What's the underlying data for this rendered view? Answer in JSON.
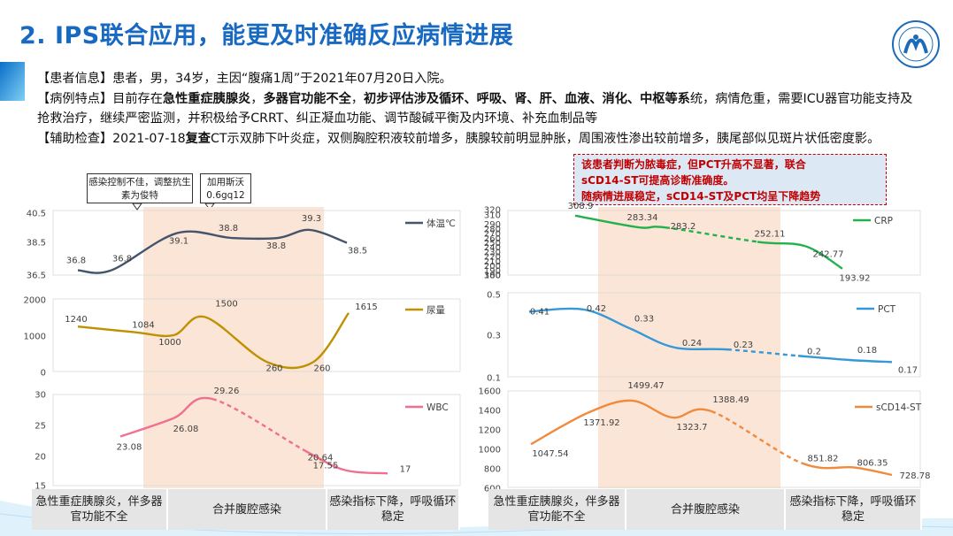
{
  "slide": {
    "title": "2. IPS联合应用，能更及时准确反应病情进展",
    "patient_info_label": "【患者信息】",
    "patient_info_text": "患者，男，34岁，主因“腹痛1周”于2021年07月20日入院。",
    "case_label": "【病例特点】",
    "case_pre": "目前存在",
    "case_b1": "急性重症胰腺炎",
    "case_sep1": "，",
    "case_b2": "多器官功能不全",
    "case_sep2": "，",
    "case_b3": "初步评估涉及循环、呼吸、肾、肝、血液、消化、中枢等系",
    "case_post": "统，病情危重，需要ICU器官功能支持及抢救治疗，继续严密监测，并积极给予CRRT、纠正凝血功能、调节酸碱平衡及内环境、补充血制品等",
    "exam_label": "【辅助检查】",
    "exam_date": "2021-07-18",
    "exam_bold": "复查",
    "exam_text": "CT示双肺下叶炎症，双侧胸腔积液较前增多，胰腺较前明显肿胀，周围液性渗出较前增多，胰尾部似见斑片状低密度影。",
    "callout1": "感染控制不佳，调整抗生素为俊特",
    "callout2": "加用斯沃0.6gq12",
    "red_box": [
      "该患者判断为脓毒症，但PCT升高不显著，联合",
      "sCD14-ST可提高诊断准确度。",
      "随病情进展稳定，sCD14-ST及PCT均呈下降趋势"
    ],
    "phases": [
      "急性重症胰腺炎，伴多器官功能不全",
      "合并腹腔感染",
      "感染指标下降，呼吸循环稳定"
    ],
    "colors": {
      "title": "#1769c2",
      "temp": "#44546a",
      "urine": "#bf9000",
      "wbc": "#f07090",
      "crp": "#22b14c",
      "pct": "#3598d8",
      "scd": "#f08a3c",
      "highlight": "#fbe5d6",
      "red": "#c00000"
    }
  },
  "chart_data": [
    {
      "type": "line",
      "series": [
        {
          "name": "体温℃",
          "values": [
            36.8,
            36.8,
            39.1,
            38.8,
            38.8,
            39.3,
            38.5
          ]
        }
      ],
      "ylim": [
        36.5,
        40.5
      ],
      "yticks": [
        "40.5",
        "38.5",
        "36.5"
      ],
      "labels": [
        "36.8",
        "36.8",
        "39.1",
        "38.8",
        "38.8",
        "39.3",
        "38.5"
      ]
    },
    {
      "type": "line",
      "series": [
        {
          "name": "尿量",
          "values": [
            1240,
            1084,
            1000,
            1500,
            260,
            260,
            1615
          ]
        }
      ],
      "ylim": [
        0,
        2000
      ],
      "yticks": [
        "2000",
        "1000",
        "0"
      ],
      "labels": [
        "1240",
        "1084",
        "1000",
        "1500",
        "260",
        "260",
        "1615"
      ]
    },
    {
      "type": "line",
      "series": [
        {
          "name": "WBC",
          "values": [
            23.08,
            26.08,
            29.26,
            20.64,
            17.55,
            17
          ]
        }
      ],
      "ylim": [
        15,
        30
      ],
      "yticks": [
        "30",
        "25",
        "20",
        "15"
      ],
      "labels": [
        "23.08",
        "26.08",
        "29.26",
        "20.64",
        "17.55",
        "17"
      ]
    },
    {
      "type": "line",
      "series": [
        {
          "name": "CRP",
          "values": [
            308.9,
            283.34,
            283.2,
            252.11,
            242.77,
            193.92
          ]
        }
      ],
      "ylim": [
        180,
        320
      ],
      "yticks": [
        "320",
        "300",
        "280",
        "260",
        "240",
        "220",
        "200",
        "180"
      ],
      "ytick_extra": [
        "310",
        "290",
        "270",
        "250",
        "230",
        "210",
        "190"
      ],
      "labels": [
        "308.9",
        "283.34",
        "283.2",
        "252.11",
        "242.77",
        "193.92"
      ]
    },
    {
      "type": "line",
      "series": [
        {
          "name": "PCT",
          "values": [
            0.41,
            0.42,
            0.33,
            0.24,
            0.23,
            0.2,
            0.18,
            0.17
          ]
        }
      ],
      "ylim": [
        0.1,
        0.5
      ],
      "yticks": [
        "0.5",
        "0.3",
        "0.1"
      ],
      "labels": [
        "0.41",
        "0.42",
        "0.33",
        "0.24",
        "0.23",
        "0.2",
        "0.18",
        "0.17"
      ]
    },
    {
      "type": "line",
      "series": [
        {
          "name": "sCD14-ST",
          "values": [
            1047.54,
            1371.92,
            1499.47,
            1323.7,
            1388.49,
            851.82,
            806.35,
            728.78
          ]
        }
      ],
      "ylim": [
        600,
        1600
      ],
      "yticks": [
        "1600",
        "1400",
        "1200",
        "1000",
        "800",
        "600"
      ],
      "labels": [
        "1047.54",
        "1371.92",
        "1499.47",
        "1323.7",
        "1388.49",
        "851.82",
        "806.35",
        "728.78"
      ]
    }
  ]
}
